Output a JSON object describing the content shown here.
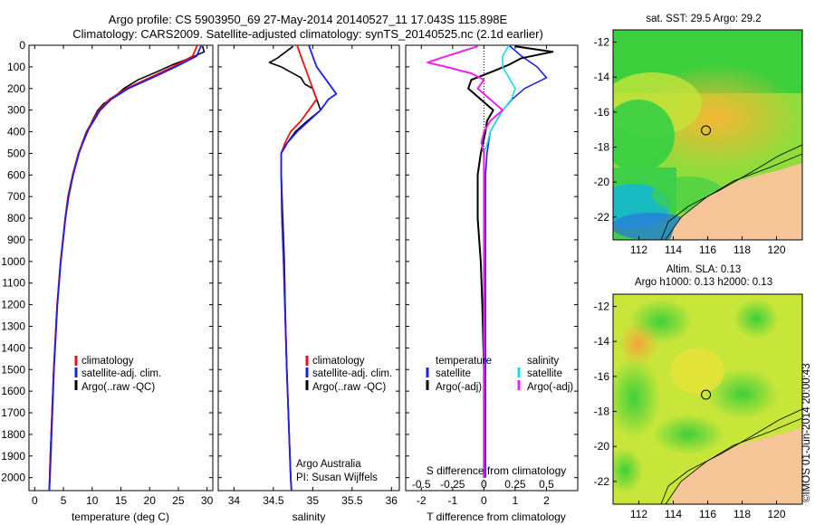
{
  "header": {
    "line1": "Argo profile: CS 5903950_69 27-May-2014 20140527_11 17.043S 115.898E",
    "line2": "Climatology: CARS2009. Satellite-adjusted climatology: synTS_20140525.nc (2.1d earlier)"
  },
  "colors": {
    "climatology": "#ee1111",
    "satellite": "#1f1fe6",
    "argo": "#000000",
    "sal_satellite": "#11e0e8",
    "sal_argo": "#ee22ee",
    "land": "#f6c597"
  },
  "chart_data": [
    {
      "type": "line",
      "name": "temperature-profile",
      "xlabel": "temperature (deg C)",
      "ylabel": "",
      "xlim": [
        -1,
        31
      ],
      "ylim": [
        2060,
        0
      ],
      "xticks": [
        "0",
        "5",
        "10",
        "15",
        "20",
        "25",
        "30"
      ],
      "xtick_values": [
        0,
        5,
        10,
        15,
        20,
        25,
        30
      ],
      "yticks": [
        0,
        100,
        200,
        300,
        400,
        500,
        600,
        700,
        800,
        900,
        1000,
        1100,
        1200,
        1300,
        1400,
        1500,
        1600,
        1700,
        1800,
        1900,
        2000
      ],
      "legend": [
        "climatology",
        "satellite-adj. clim.",
        "Argo(..raw -QC)"
      ],
      "series": [
        {
          "name": "climatology",
          "depth": [
            0,
            50,
            100,
            150,
            200,
            250,
            300,
            400,
            500,
            600,
            700,
            800,
            1000,
            1200,
            1500,
            2000,
            2060
          ],
          "values": [
            28.3,
            27.5,
            24.0,
            20.0,
            16.0,
            13.0,
            11.2,
            9.0,
            7.6,
            6.6,
            5.8,
            5.3,
            4.5,
            3.9,
            3.3,
            2.6,
            2.5
          ]
        },
        {
          "name": "satellite-adj. clim.",
          "depth": [
            0,
            50,
            100,
            150,
            200,
            250,
            300,
            400,
            500,
            600,
            700,
            800,
            1000,
            1200,
            1500,
            2000,
            2060
          ],
          "values": [
            29.0,
            28.2,
            24.5,
            20.5,
            16.3,
            13.3,
            11.4,
            9.1,
            7.7,
            6.7,
            5.9,
            5.35,
            4.55,
            3.95,
            3.35,
            2.65,
            2.55
          ]
        },
        {
          "name": "Argo(..raw -QC)",
          "depth": [
            4,
            30,
            60,
            90,
            120,
            160,
            200,
            240,
            270,
            300,
            350,
            400,
            500,
            600,
            700,
            800,
            1000,
            1200,
            1500,
            1700,
            1900,
            2000
          ],
          "values": [
            29.2,
            29.5,
            27.0,
            24.0,
            21.5,
            18.0,
            15.5,
            13.8,
            12.0,
            11.0,
            10.0,
            9.2,
            7.6,
            6.6,
            5.8,
            5.3,
            4.5,
            3.9,
            3.3,
            3.0,
            2.7,
            2.6
          ]
        }
      ]
    },
    {
      "type": "line",
      "name": "salinity-profile",
      "xlabel": "salinity",
      "xlim": [
        33.8,
        36.1
      ],
      "ylim": [
        2060,
        0
      ],
      "xticks": [
        "34",
        "34.5",
        "35",
        "35.5",
        "36"
      ],
      "xtick_values": [
        34,
        34.5,
        35,
        35.5,
        36
      ],
      "legend": [
        "climatology",
        "satellite-adj. clim.",
        "Argo(..raw -QC)"
      ],
      "annotation": [
        "Argo Australia",
        "PI: Susan Wijffels"
      ],
      "series": [
        {
          "name": "climatology",
          "depth": [
            0,
            50,
            100,
            150,
            200,
            250,
            300,
            350,
            400,
            450,
            500,
            600,
            800,
            1000,
            1500,
            2000,
            2060
          ],
          "values": [
            34.8,
            34.85,
            34.9,
            34.95,
            35.0,
            35.05,
            34.95,
            34.85,
            34.72,
            34.65,
            34.6,
            34.6,
            34.61,
            34.63,
            34.67,
            34.72,
            34.73
          ]
        },
        {
          "name": "satellite-adj. clim.",
          "depth": [
            0,
            50,
            100,
            150,
            200,
            225,
            250,
            300,
            350,
            400,
            450,
            500,
            600,
            800,
            1000,
            1500,
            2000,
            2060
          ],
          "values": [
            34.95,
            35.0,
            35.05,
            35.15,
            35.25,
            35.3,
            35.2,
            35.1,
            34.95,
            34.8,
            34.68,
            34.6,
            34.6,
            34.61,
            34.63,
            34.67,
            34.72,
            34.73
          ]
        },
        {
          "name": "Argo(..raw -QC)",
          "depth": [
            5,
            60,
            80,
            100,
            120,
            150,
            180,
            200,
            250,
            300,
            330,
            360,
            400,
            450,
            480,
            500,
            600,
            800,
            1000,
            1200,
            1500,
            1800,
            2000
          ],
          "values": [
            34.75,
            34.55,
            34.45,
            34.6,
            34.7,
            34.85,
            34.9,
            35.0,
            35.05,
            35.1,
            35.0,
            34.9,
            34.78,
            34.68,
            34.62,
            34.6,
            34.6,
            34.62,
            34.64,
            34.65,
            34.67,
            34.7,
            34.72
          ]
        }
      ]
    },
    {
      "type": "line",
      "name": "difference-profile",
      "xlabel": "T difference from climatology",
      "xlabel_top": "S difference from climatology",
      "xlim": [
        -2.5,
        3
      ],
      "ylim": [
        2060,
        0
      ],
      "xticks": [
        "-2",
        "-1",
        "0",
        "1",
        "2"
      ],
      "xtick_values": [
        -2,
        -1,
        0,
        1,
        2
      ],
      "sticks": [
        "-0.5",
        "-0.25",
        "0",
        "0.25",
        "0.5"
      ],
      "stick_values": [
        -0.5,
        -0.25,
        0,
        0.25,
        0.5
      ],
      "legend_temperature": [
        "temperature",
        "satellite",
        "Argo(-adj)"
      ],
      "legend_salinity": [
        "salinity",
        "satellite",
        "Argo(-adj)"
      ],
      "series": [
        {
          "name": "T satellite",
          "depth": [
            0,
            50,
            100,
            150,
            200,
            250,
            300,
            350,
            400,
            500,
            600,
            800,
            1000,
            1500,
            2000
          ],
          "values": [
            0.8,
            1.2,
            1.7,
            2.0,
            1.3,
            0.9,
            0.6,
            0.4,
            0.2,
            0.1,
            0.05,
            0.05,
            0.05,
            0.05,
            0.05
          ]
        },
        {
          "name": "T Argo(-adj)",
          "depth": [
            5,
            30,
            60,
            90,
            120,
            160,
            200,
            250,
            300,
            350,
            400,
            500,
            600,
            800,
            1000,
            1200,
            1500,
            1800,
            2000
          ],
          "values": [
            1.0,
            2.2,
            1.2,
            0.8,
            0.3,
            -0.4,
            -0.5,
            -0.1,
            0.3,
            0.1,
            0.05,
            -0.1,
            -0.2,
            -0.2,
            -0.1,
            -0.05,
            0.0,
            0.0,
            0.0
          ]
        },
        {
          "name": "S satellite",
          "depth": [
            0,
            50,
            100,
            150,
            200,
            250,
            300,
            350,
            400,
            450,
            500,
            600,
            1000,
            1500,
            2000
          ],
          "values": [
            0.2,
            0.15,
            0.15,
            0.2,
            0.25,
            0.22,
            0.15,
            0.1,
            0.05,
            0.03,
            0.0,
            0.0,
            0.0,
            0.0,
            0.0
          ]
        },
        {
          "name": "S Argo(-adj)",
          "depth": [
            5,
            60,
            80,
            100,
            130,
            160,
            200,
            250,
            300,
            350,
            400,
            450,
            500,
            600,
            800,
            1000,
            1500,
            2000
          ],
          "values": [
            -0.05,
            -0.35,
            -0.45,
            -0.3,
            -0.1,
            0.0,
            -0.05,
            0.05,
            0.15,
            0.05,
            0.0,
            -0.02,
            0.0,
            0.0,
            0.0,
            0.0,
            0.0,
            0.0
          ]
        }
      ]
    },
    {
      "type": "heatmap",
      "name": "sst-map",
      "title": "sat. SST: 29.5 Argo: 29.2",
      "xticks": [
        "112",
        "114",
        "116",
        "118",
        "120"
      ],
      "xtick_values": [
        112,
        114,
        116,
        118,
        120
      ],
      "yticks": [
        "-12",
        "-14",
        "-16",
        "-18",
        "-20",
        "-22"
      ],
      "ytick_values": [
        -12,
        -14,
        -16,
        -18,
        -20,
        -22
      ],
      "xlim": [
        110.5,
        121.5
      ],
      "ylim": [
        -23.3,
        -11.3
      ],
      "argo_position": [
        115.898,
        -17.043
      ]
    },
    {
      "type": "heatmap",
      "name": "sla-map",
      "title": [
        "Altim. SLA: 0.13",
        "Argo h1000: 0.13 h2000: 0.13"
      ],
      "xticks": [
        "112",
        "114",
        "116",
        "118",
        "120"
      ],
      "xtick_values": [
        112,
        114,
        116,
        118,
        120
      ],
      "yticks": [
        "-12",
        "-14",
        "-16",
        "-18",
        "-20",
        "-22"
      ],
      "ytick_values": [
        -12,
        -14,
        -16,
        -18,
        -20,
        -22
      ],
      "xlim": [
        110.5,
        121.5
      ],
      "ylim": [
        -23.3,
        -11.3
      ],
      "argo_position": [
        115.898,
        -17.043
      ]
    }
  ],
  "footer": {
    "vertical_label": "©IMOS 01-Jun-2014 20:00:43"
  }
}
